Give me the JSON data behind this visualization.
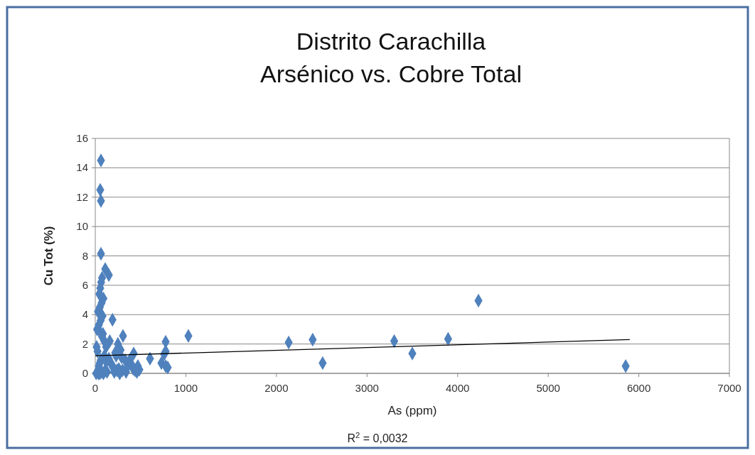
{
  "chart_data": {
    "type": "scatter",
    "title": "Distrito Carachilla\nArsénico vs. Cobre Total",
    "xlabel": "As (ppm)",
    "ylabel": "Cu Tot (%)",
    "xlim": [
      0,
      7000
    ],
    "xticks": [
      0,
      1000,
      2000,
      3000,
      4000,
      5000,
      6000,
      7000
    ],
    "ylim": [
      0,
      16
    ],
    "yticks": [
      0,
      2,
      4,
      6,
      8,
      10,
      12,
      14,
      16
    ],
    "grid": "y",
    "annotations": [
      "R$^{2}$ = 0,0032"
    ],
    "series": [
      {
        "color": "#4f81bd",
        "marker": "diamond",
        "x": [
          63,
          55,
          63,
          63,
          110,
          150,
          190,
          1028,
          777,
          777,
          777,
          604,
          424,
          487,
          306,
          2135,
          2400,
          2510,
          3300,
          3500,
          3895,
          4230,
          5855,
          40,
          50,
          60,
          25,
          75,
          85,
          20,
          40,
          60,
          80,
          30,
          50,
          70,
          90,
          45,
          55,
          65,
          75,
          35,
          100,
          120,
          100,
          120,
          150,
          180,
          220,
          250,
          280,
          300,
          330,
          160,
          190,
          230,
          260,
          290,
          350,
          380,
          400,
          440,
          470,
          10,
          15,
          35,
          50,
          70,
          90,
          110,
          130,
          210,
          240,
          270,
          340,
          420,
          460,
          800,
          730,
          760
        ],
        "values": [
          14.5,
          12.5,
          11.75,
          8.15,
          7.1,
          6.7,
          3.65,
          2.55,
          2.15,
          1.5,
          0.5,
          1.0,
          1.35,
          0.25,
          2.55,
          2.1,
          2.3,
          0.7,
          2.2,
          1.35,
          2.35,
          4.95,
          0.5,
          0.5,
          0.7,
          0.9,
          1.5,
          2.5,
          2.7,
          3.0,
          3.3,
          3.6,
          3.9,
          4.2,
          4.5,
          4.8,
          5.1,
          5.4,
          5.8,
          6.2,
          6.5,
          3.0,
          1.2,
          0.8,
          2.2,
          1.8,
          1.0,
          0.6,
          1.4,
          2.0,
          1.6,
          0.2,
          0.9,
          2.2,
          0.5,
          1.2,
          0.3,
          1.1,
          0.4,
          0.9,
          0.6,
          0.2,
          0.5,
          0.0,
          1.8,
          0.0,
          0.0,
          0.1,
          0.0,
          0.2,
          0.1,
          0.1,
          0.2,
          0.0,
          0.1,
          0.3,
          0.1,
          0.4,
          0.7,
          1.3
        ]
      },
      {
        "type": "line",
        "color": "#000000",
        "x": [
          0,
          5900
        ],
        "values": [
          1.2,
          2.3
        ]
      }
    ]
  }
}
